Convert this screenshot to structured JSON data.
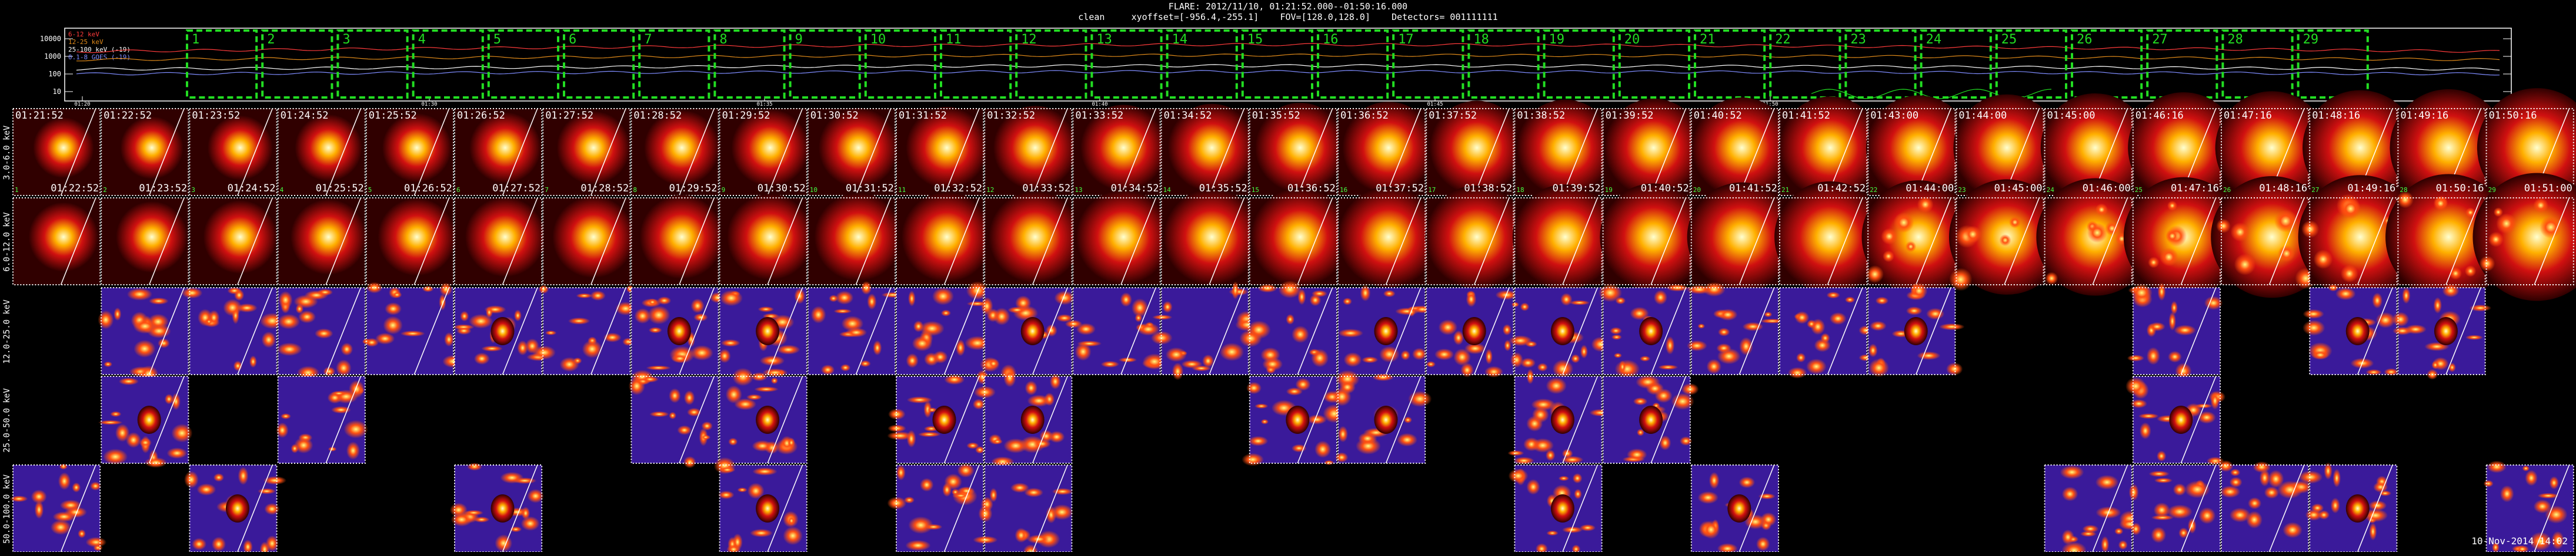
{
  "header": {
    "line1": "FLARE: 2012/11/10, 01:21:52.000--01:50:16.000",
    "line2": "clean     xyoffset=[-956.4,-255.1]    FOV=[128.0,128.0]    Detectors= 001111111"
  },
  "lightcurve": {
    "legend": [
      {
        "text": "6-12 keV",
        "color": "#ff3b3b"
      },
      {
        "text": "12-25 keV",
        "color": "#e08a1a"
      },
      {
        "text": "25-100 keV (-19)",
        "color": "#ffffff"
      },
      {
        "text": "0.1-8 GOES (-19)",
        "color": "#7f8cff"
      }
    ],
    "y_ticks": [
      "10000",
      "1000",
      "100",
      "10"
    ],
    "x_ticks": [
      "01:20",
      "01:30",
      "01:35",
      "01:40",
      "01:45",
      "01:50"
    ],
    "intervals": [
      "1",
      "2",
      "3",
      "4",
      "5",
      "6",
      "7",
      "8",
      "9",
      "10",
      "11",
      "12",
      "13",
      "14",
      "15",
      "16",
      "17",
      "18",
      "19",
      "20",
      "21",
      "22",
      "23",
      "24",
      "25",
      "26",
      "27",
      "28",
      "29"
    ],
    "interval_color": "#22dd22"
  },
  "rows": [
    {
      "label": "3.0-6.0 keV",
      "present": [
        1,
        1,
        1,
        1,
        1,
        1,
        1,
        1,
        1,
        1,
        1,
        1,
        1,
        1,
        1,
        1,
        1,
        1,
        1,
        1,
        1,
        1,
        1,
        1,
        1,
        1,
        1,
        1,
        1
      ]
    },
    {
      "label": "6.0-12.0 keV",
      "present": [
        1,
        1,
        1,
        1,
        1,
        1,
        1,
        1,
        1,
        1,
        1,
        1,
        1,
        1,
        1,
        1,
        1,
        1,
        1,
        1,
        1,
        1,
        1,
        1,
        1,
        1,
        1,
        1,
        1
      ]
    },
    {
      "label": "12.0-25.0 keV",
      "present": [
        0,
        1,
        1,
        1,
        1,
        1,
        1,
        1,
        1,
        1,
        1,
        1,
        1,
        1,
        1,
        1,
        1,
        1,
        1,
        1,
        1,
        1,
        0,
        0,
        1,
        0,
        1,
        1,
        0
      ]
    },
    {
      "label": "25.0-50.0 keV",
      "present": [
        0,
        1,
        0,
        1,
        0,
        0,
        0,
        1,
        1,
        0,
        1,
        1,
        0,
        0,
        1,
        1,
        0,
        1,
        1,
        0,
        0,
        0,
        0,
        0,
        1,
        0,
        0,
        0,
        0
      ]
    },
    {
      "label": "50.0-100.0 keV",
      "present": [
        1,
        0,
        1,
        0,
        0,
        1,
        0,
        0,
        1,
        0,
        1,
        1,
        0,
        0,
        0,
        0,
        0,
        1,
        0,
        1,
        0,
        0,
        0,
        1,
        1,
        1,
        1,
        0,
        1
      ]
    }
  ],
  "start_times": [
    "01:21:52",
    "01:22:52",
    "01:23:52",
    "01:24:52",
    "01:25:52",
    "01:26:52",
    "01:27:52",
    "01:28:52",
    "01:29:52",
    "01:30:52",
    "01:31:52",
    "01:32:52",
    "01:33:52",
    "01:34:52",
    "01:35:52",
    "01:36:52",
    "01:37:52",
    "01:38:52",
    "01:39:52",
    "01:40:52",
    "01:41:52",
    "01:43:00",
    "01:44:00",
    "01:45:00",
    "01:46:16",
    "01:47:16",
    "01:48:16",
    "01:49:16",
    "01:50:16"
  ],
  "end_times": [
    "01:22:52",
    "01:23:52",
    "01:24:52",
    "01:25:52",
    "01:26:52",
    "01:27:52",
    "01:28:52",
    "01:29:52",
    "01:30:52",
    "01:31:52",
    "01:32:52",
    "01:33:52",
    "01:34:52",
    "01:35:52",
    "01:36:52",
    "01:37:52",
    "01:38:52",
    "01:39:52",
    "01:40:52",
    "01:41:52",
    "01:42:52",
    "01:44:00",
    "01:45:00",
    "01:46:00",
    "01:47:16",
    "01:48:16",
    "01:49:16",
    "01:50:16",
    "01:51:00"
  ],
  "stamp": "10-Nov-2014 14:02",
  "colors": {
    "hot": "#ffffd0",
    "red": "#d01010",
    "dark": "#300000",
    "noise": "#3a1a9a",
    "frame": "#ffffff"
  }
}
